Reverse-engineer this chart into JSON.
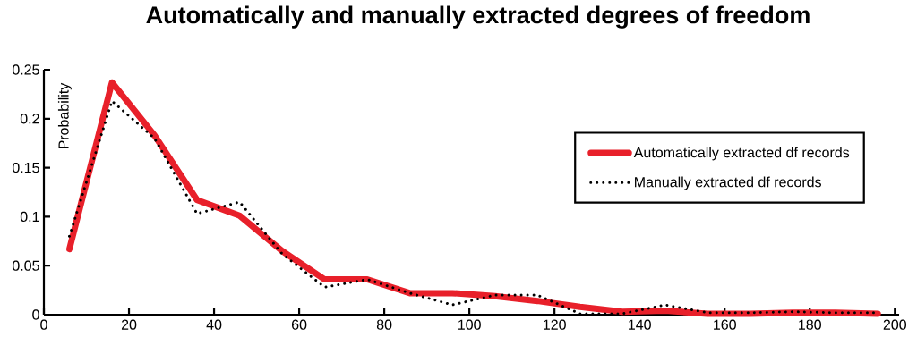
{
  "chart_data": {
    "type": "line",
    "title": "Automatically and manually extracted degrees of freedom",
    "ylabel": "Probability",
    "x": [
      6,
      16,
      26,
      36,
      46,
      56,
      66,
      76,
      86,
      96,
      106,
      116,
      126,
      136,
      146,
      156,
      166,
      176,
      186,
      196
    ],
    "series": [
      {
        "name": "Automatically extracted df records",
        "color": "#e8202a",
        "line_style": "solid",
        "values": [
          0.067,
          0.237,
          0.183,
          0.117,
          0.101,
          0.065,
          0.036,
          0.036,
          0.022,
          0.022,
          0.019,
          0.014,
          0.008,
          0.003,
          0.004,
          0.001,
          0.001,
          0.002,
          0.002,
          0.001
        ]
      },
      {
        "name": "Manually extracted df records",
        "color": "#000000",
        "line_style": "dotted",
        "values": [
          0.08,
          0.218,
          0.18,
          0.103,
          0.115,
          0.062,
          0.028,
          0.036,
          0.022,
          0.01,
          0.02,
          0.02,
          0.001,
          0.001,
          0.01,
          0.002,
          0.002,
          0.003,
          0.002,
          0.002
        ]
      }
    ],
    "xlim": [
      0,
      201
    ],
    "ylim": [
      0,
      0.25
    ],
    "xticks": [
      0,
      20,
      40,
      60,
      80,
      100,
      120,
      140,
      160,
      180,
      200
    ],
    "yticks": [
      0,
      0.05,
      0.1,
      0.15,
      0.2,
      0.25
    ],
    "grid": false,
    "legend": "right",
    "marker": "none"
  }
}
